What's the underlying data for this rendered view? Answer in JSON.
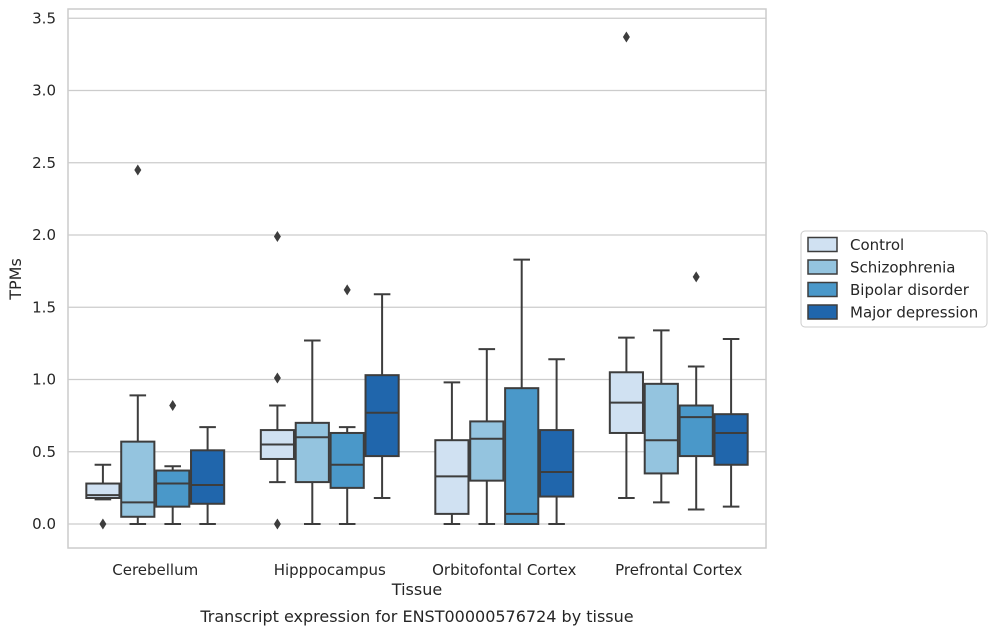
{
  "chart_data": {
    "type": "boxplot",
    "title": "Transcript expression for ENST00000576724 by tissue",
    "xlabel": "Tissue",
    "ylabel": "TPMs",
    "ylim": [
      -0.16,
      3.55
    ],
    "yticks": [
      "0.0",
      "0.5",
      "1.0",
      "1.5",
      "2.0",
      "2.5",
      "3.0",
      "3.5"
    ],
    "ytick_values": [
      0,
      0.5,
      1,
      1.5,
      2,
      2.5,
      3,
      3.5
    ],
    "grid": "horizontal",
    "legend_position": "right",
    "categories": [
      "Cerebellum",
      "Hipppocampus",
      "Orbitofontal Cortex",
      "Prefrontal Cortex"
    ],
    "series": [
      {
        "name": "Control",
        "color": "#d0e1f2",
        "boxes": [
          {
            "whislo": 0.17,
            "q1": 0.18,
            "med": 0.2,
            "q3": 0.28,
            "whishi": 0.41,
            "fliers": [
              0.0
            ]
          },
          {
            "whislo": 0.29,
            "q1": 0.45,
            "med": 0.55,
            "q3": 0.65,
            "whishi": 0.82,
            "fliers": [
              0.0,
              1.01,
              1.99
            ]
          },
          {
            "whislo": 0.0,
            "q1": 0.07,
            "med": 0.33,
            "q3": 0.58,
            "whishi": 0.98,
            "fliers": []
          },
          {
            "whislo": 0.18,
            "q1": 0.63,
            "med": 0.84,
            "q3": 1.05,
            "whishi": 1.29,
            "fliers": [
              3.37
            ]
          }
        ]
      },
      {
        "name": "Schizophrenia",
        "color": "#94c4df",
        "boxes": [
          {
            "whislo": 0.0,
            "q1": 0.05,
            "med": 0.15,
            "q3": 0.57,
            "whishi": 0.89,
            "fliers": [
              2.45
            ]
          },
          {
            "whislo": 0.0,
            "q1": 0.29,
            "med": 0.6,
            "q3": 0.7,
            "whishi": 1.27,
            "fliers": []
          },
          {
            "whislo": 0.0,
            "q1": 0.3,
            "med": 0.59,
            "q3": 0.71,
            "whishi": 1.21,
            "fliers": []
          },
          {
            "whislo": 0.15,
            "q1": 0.35,
            "med": 0.58,
            "q3": 0.97,
            "whishi": 1.34,
            "fliers": []
          }
        ]
      },
      {
        "name": "Bipolar disorder",
        "color": "#4a98c9",
        "boxes": [
          {
            "whislo": 0.0,
            "q1": 0.12,
            "med": 0.28,
            "q3": 0.37,
            "whishi": 0.4,
            "fliers": [
              0.82
            ]
          },
          {
            "whislo": 0.0,
            "q1": 0.25,
            "med": 0.41,
            "q3": 0.63,
            "whishi": 0.67,
            "fliers": [
              1.62
            ]
          },
          {
            "whislo": 0.0,
            "q1": 0.0,
            "med": 0.07,
            "q3": 0.94,
            "whishi": 1.83,
            "fliers": []
          },
          {
            "whislo": 0.1,
            "q1": 0.47,
            "med": 0.74,
            "q3": 0.82,
            "whishi": 1.09,
            "fliers": [
              1.71
            ]
          }
        ]
      },
      {
        "name": "Major depression",
        "color": "#2066ac",
        "boxes": [
          {
            "whislo": 0.0,
            "q1": 0.14,
            "med": 0.27,
            "q3": 0.51,
            "whishi": 0.67,
            "fliers": []
          },
          {
            "whislo": 0.18,
            "q1": 0.47,
            "med": 0.77,
            "q3": 1.03,
            "whishi": 1.59,
            "fliers": []
          },
          {
            "whislo": 0.0,
            "q1": 0.19,
            "med": 0.36,
            "q3": 0.65,
            "whishi": 1.14,
            "fliers": []
          },
          {
            "whislo": 0.12,
            "q1": 0.41,
            "med": 0.63,
            "q3": 0.76,
            "whishi": 1.28,
            "fliers": []
          }
        ]
      }
    ]
  }
}
